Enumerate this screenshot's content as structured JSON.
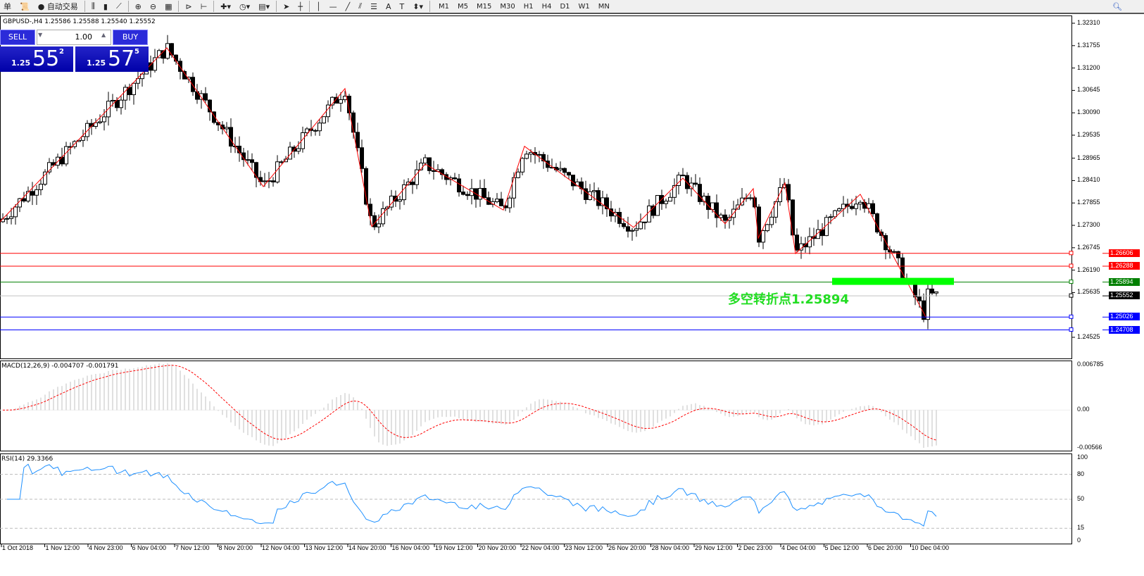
{
  "toolbar": {
    "menu_fragment": "单",
    "auto_trade": "自动交易",
    "timeframes": [
      "M1",
      "M5",
      "M15",
      "M30",
      "H1",
      "H4",
      "D1",
      "W1",
      "MN"
    ],
    "icons": [
      "chart-bar-icon",
      "chart-candle-icon",
      "chart-line-icon",
      "zoom-in-icon",
      "zoom-out-icon",
      "tile-windows-icon",
      "auto-scroll-icon",
      "chart-shift-icon",
      "new-indicator-icon",
      "periods-icon",
      "templates-icon",
      "cursor-icon",
      "crosshair-icon",
      "vertical-line-icon",
      "horizontal-line-icon",
      "trendline-icon",
      "fibo-icon",
      "channel-icon",
      "text-icon",
      "label-icon",
      "arrows-icon",
      "search-icon"
    ]
  },
  "chart": {
    "title": "GBPUSD-,H4  1.25586 1.25588 1.25540 1.25552",
    "trade": {
      "sell": "SELL",
      "buy": "BUY",
      "lots": "1.00",
      "bid_prefix": "1.25",
      "bid_big": "55",
      "bid_sup": "2",
      "ask_prefix": "1.25",
      "ask_big": "57",
      "ask_sup": "5"
    },
    "price_axis": [
      "1.32310",
      "1.31755",
      "1.31200",
      "1.30645",
      "1.30090",
      "1.29535",
      "1.28965",
      "1.28410",
      "1.27855",
      "1.27300",
      "1.26745",
      "1.26190",
      "1.25635",
      "1.24525"
    ],
    "levels": [
      {
        "price": "1.26606",
        "color": "#ff0000"
      },
      {
        "price": "1.26288",
        "color": "#ff0000"
      },
      {
        "price": "1.25894",
        "color": "#008000"
      },
      {
        "price": "1.25552",
        "color": "#000000",
        "line": "#c0c0c0"
      },
      {
        "price": "1.25026",
        "color": "#0000ff"
      },
      {
        "price": "1.24708",
        "color": "#0000ff"
      }
    ],
    "annotation": "多空转折点1.25894",
    "zigzag": [
      1.2739,
      1.317,
      1.2826,
      1.3069,
      1.2727,
      1.2882,
      1.2768,
      1.2926,
      1.2725,
      1.2847,
      1.2734,
      1.2821,
      1.2698,
      1.2835,
      1.266,
      1.2807,
      1.2503
    ]
  },
  "macd": {
    "label": "MACD(12,26,9) -0.004707 -0.001791",
    "axis": [
      "0.006785",
      "0.00",
      "-0.00566"
    ]
  },
  "rsi": {
    "label": "RSI(14) 29.3366",
    "axis": [
      "100",
      "80",
      "50",
      "15",
      "0"
    ],
    "current": 29.3366
  },
  "time_axis": [
    "1 Oct 2018",
    "1 Nov 12:00",
    "4 Nov 23:00",
    "6 Nov 04:00",
    "7 Nov 12:00",
    "8 Nov 20:00",
    "12 Nov 04:00",
    "13 Nov 12:00",
    "14 Nov 20:00",
    "16 Nov 04:00",
    "19 Nov 12:00",
    "20 Nov 20:00",
    "22 Nov 04:00",
    "23 Nov 12:00",
    "26 Nov 20:00",
    "28 Nov 04:00",
    "29 Nov 12:00",
    "2 Dec 23:00",
    "4 Dec 04:00",
    "5 Dec 12:00",
    "6 Dec 20:00",
    "10 Dec 04:00"
  ],
  "colors": {
    "zigzag": "#ff0000",
    "macd_signal": "#ff0000",
    "macd_hist": "#c0c0c0",
    "rsi": "#1e90ff",
    "pivot_bar": "#00ff00"
  }
}
